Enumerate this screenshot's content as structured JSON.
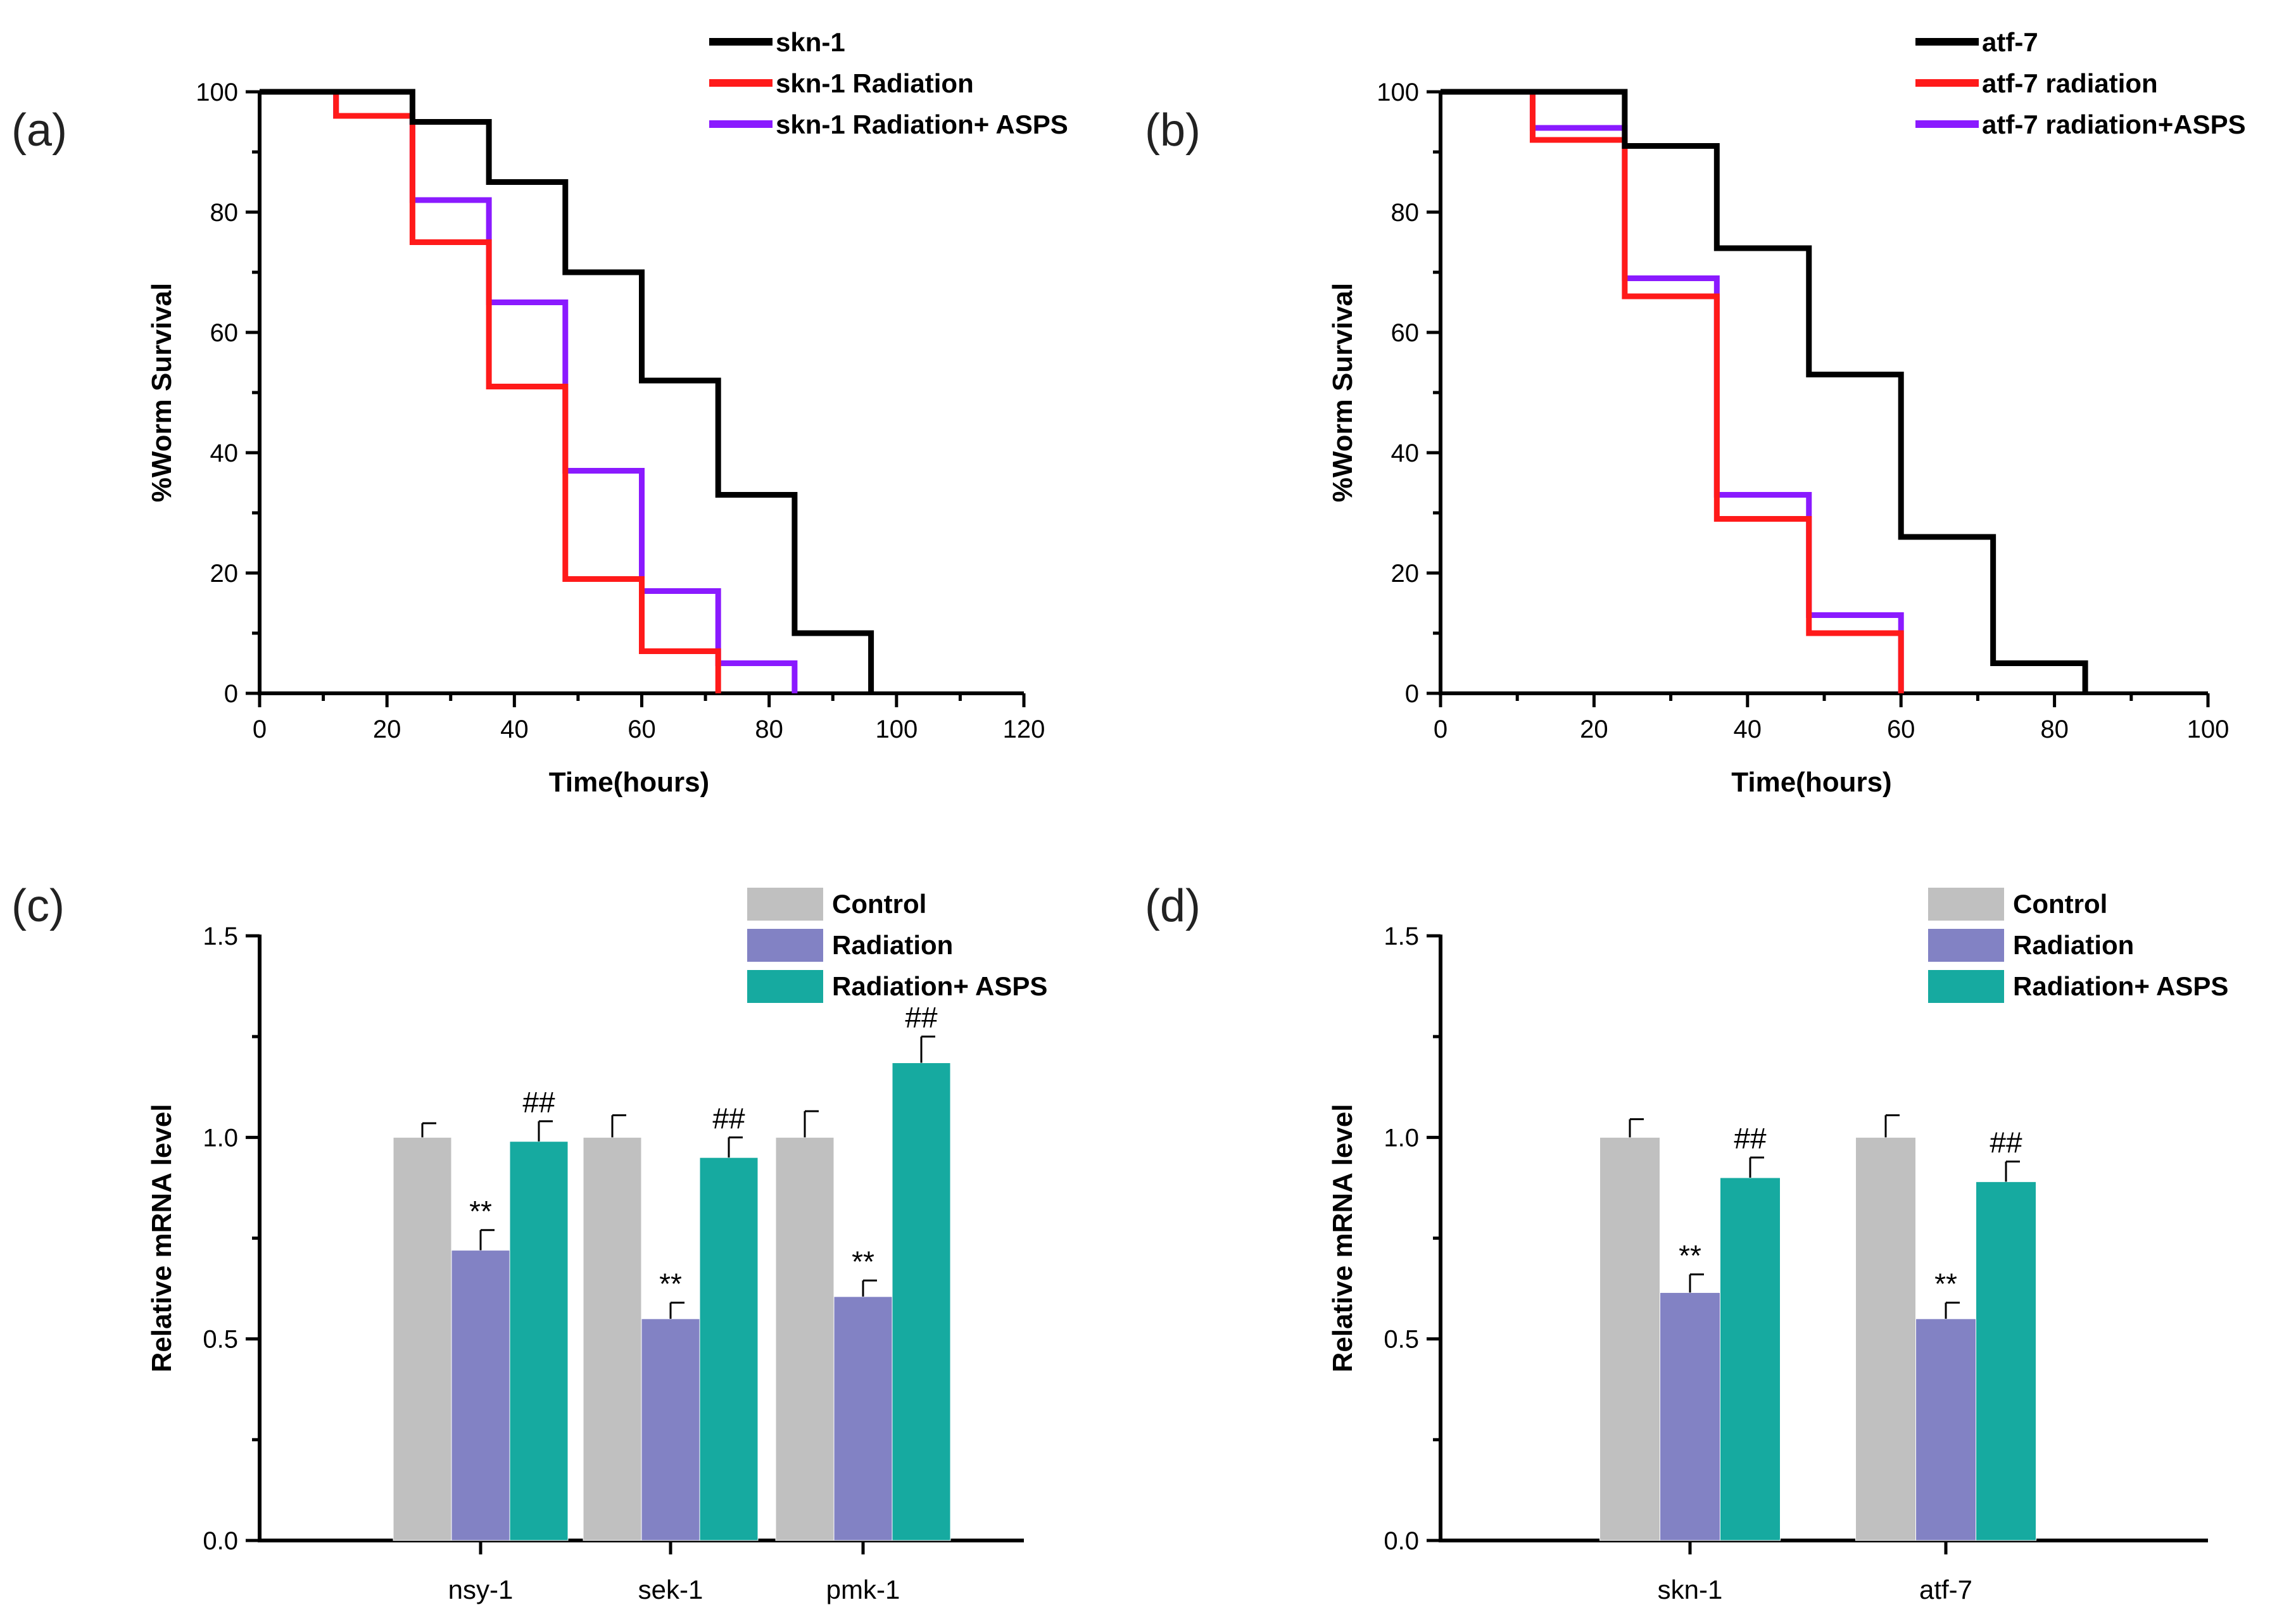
{
  "chart_data": [
    {
      "id": "a",
      "panel_label": "(a)",
      "type": "line",
      "step": true,
      "xlabel": "Time(hours)",
      "ylabel": "%Worm Survival",
      "xlim": [
        0,
        120
      ],
      "ylim": [
        0,
        100
      ],
      "xticks": [
        0,
        20,
        40,
        60,
        80,
        100,
        120
      ],
      "yticks": [
        0,
        20,
        40,
        60,
        80,
        100
      ],
      "legend_position": "top-right",
      "series": [
        {
          "name": "skn-1",
          "color": "#000000",
          "x": [
            0,
            12,
            24,
            36,
            48,
            60,
            72,
            84,
            96
          ],
          "y": [
            100,
            100,
            95,
            85,
            70,
            52,
            33,
            10,
            0
          ]
        },
        {
          "name": "skn-1 Radiation",
          "color": "#ff1a1a",
          "x": [
            0,
            12,
            24,
            36,
            48,
            60,
            72
          ],
          "y": [
            100,
            96,
            75,
            51,
            19,
            7,
            0
          ]
        },
        {
          "name": "skn-1 Radiation+ ASPS",
          "color": "#8a1aff",
          "x": [
            0,
            12,
            24,
            36,
            48,
            60,
            72,
            84
          ],
          "y": [
            100,
            96,
            82,
            65,
            37,
            17,
            5,
            0
          ]
        }
      ]
    },
    {
      "id": "b",
      "panel_label": "(b)",
      "type": "line",
      "step": true,
      "xlabel": "Time(hours)",
      "ylabel": "%Worm Survival",
      "xlim": [
        0,
        100
      ],
      "ylim": [
        0,
        100
      ],
      "xticks": [
        0,
        20,
        40,
        60,
        80,
        100
      ],
      "yticks": [
        0,
        20,
        40,
        60,
        80,
        100
      ],
      "legend_position": "top-right",
      "series": [
        {
          "name": "atf-7",
          "color": "#000000",
          "x": [
            0,
            12,
            24,
            36,
            48,
            60,
            72,
            84
          ],
          "y": [
            100,
            100,
            91,
            74,
            53,
            26,
            5,
            0
          ]
        },
        {
          "name": "atf-7 radiation",
          "color": "#ff1a1a",
          "x": [
            0,
            12,
            24,
            36,
            48,
            60
          ],
          "y": [
            100,
            92,
            66,
            29,
            10,
            0
          ]
        },
        {
          "name": "atf-7 radiation+ASPS",
          "color": "#8a1aff",
          "x": [
            0,
            12,
            24,
            36,
            48,
            60
          ],
          "y": [
            100,
            94,
            69,
            33,
            13,
            0
          ]
        }
      ]
    },
    {
      "id": "c",
      "panel_label": "(c)",
      "type": "bar",
      "ylabel": "Relative mRNA level",
      "ylim": [
        0,
        1.5
      ],
      "yticks": [
        "0.0",
        "0.5",
        "1.0",
        "1.5"
      ],
      "categories": [
        "nsy-1",
        "sek-1",
        "pmk-1"
      ],
      "legend_position": "top-right",
      "series": [
        {
          "name": "Control",
          "color": "#c0c0c0",
          "values": [
            1.0,
            1.0,
            1.0
          ],
          "errors": [
            0.035,
            0.055,
            0.065
          ],
          "labels": [
            "",
            "",
            ""
          ]
        },
        {
          "name": "Radiation",
          "color": "#8282c4",
          "values": [
            0.72,
            0.55,
            0.605
          ],
          "errors": [
            0.05,
            0.04,
            0.04
          ],
          "labels": [
            "**",
            "**",
            "**"
          ]
        },
        {
          "name": "Radiation+ ASPS",
          "color": "#16aaa0",
          "values": [
            0.99,
            0.95,
            1.185
          ],
          "errors": [
            0.05,
            0.05,
            0.065
          ],
          "labels": [
            "##",
            "##",
            "##"
          ]
        }
      ]
    },
    {
      "id": "d",
      "panel_label": "(d)",
      "type": "bar",
      "ylabel": "Relative mRNA level",
      "ylim": [
        0,
        1.5
      ],
      "yticks": [
        "0.0",
        "0.5",
        "1.0",
        "1.5"
      ],
      "categories": [
        "skn-1",
        "atf-7"
      ],
      "legend_position": "top-right",
      "series": [
        {
          "name": "Control",
          "color": "#c0c0c0",
          "values": [
            1.0,
            1.0
          ],
          "errors": [
            0.045,
            0.055
          ],
          "labels": [
            "",
            ""
          ]
        },
        {
          "name": "Radiation",
          "color": "#8282c4",
          "values": [
            0.615,
            0.55
          ],
          "errors": [
            0.045,
            0.04
          ],
          "labels": [
            "**",
            "**"
          ]
        },
        {
          "name": "Radiation+ ASPS",
          "color": "#16aaa0",
          "values": [
            0.9,
            0.89
          ],
          "errors": [
            0.05,
            0.05
          ],
          "labels": [
            "##",
            "##"
          ]
        }
      ]
    }
  ]
}
